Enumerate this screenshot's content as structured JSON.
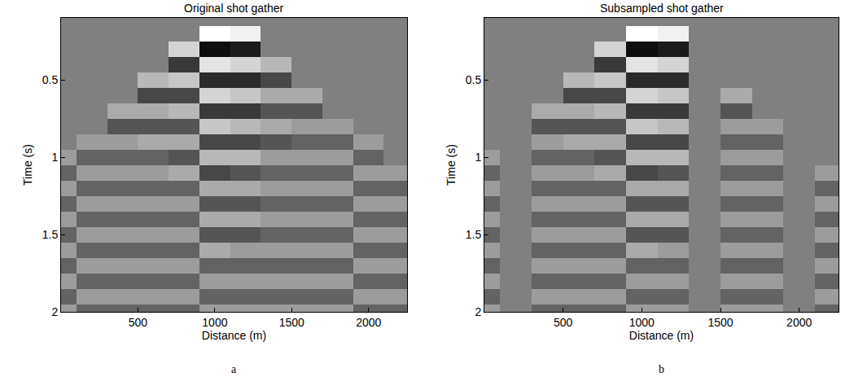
{
  "chart_data": [
    {
      "type": "heatmap",
      "title": "Original shot gather",
      "caption": "a",
      "x_label": "Distance (m)",
      "y_label": "Time (s)",
      "color": "Greys",
      "x": [
        0,
        200,
        400,
        600,
        800,
        1000,
        1200,
        1400,
        1600,
        1800,
        2000,
        2200
      ],
      "y": [
        0.1,
        0.2,
        0.3,
        0.4,
        0.5,
        0.6,
        0.7,
        0.8,
        0.9,
        1.0,
        1.1,
        1.2,
        1.3,
        1.4,
        1.5,
        1.6,
        1.7,
        1.8,
        1.9,
        2.0
      ],
      "z": [
        [
          0,
          0,
          0,
          0,
          0,
          0,
          0,
          0,
          0,
          0,
          0,
          0
        ],
        [
          0,
          0,
          0,
          0,
          0,
          0.9,
          0.8,
          0,
          0,
          0,
          0,
          0
        ],
        [
          0,
          0,
          0,
          0,
          0.6,
          -0.8,
          -0.7,
          0,
          0,
          0,
          0,
          0
        ],
        [
          0,
          0,
          0,
          0,
          -0.5,
          0.7,
          0.6,
          0.4,
          0,
          0,
          0,
          0
        ],
        [
          0,
          0,
          0,
          0.4,
          0.5,
          -0.6,
          -0.6,
          -0.4,
          0,
          0,
          0,
          0
        ],
        [
          0,
          0,
          0,
          -0.4,
          -0.4,
          0.6,
          0.5,
          0.3,
          0.3,
          0,
          0,
          0
        ],
        [
          0,
          0,
          0.3,
          0.3,
          0.4,
          -0.5,
          -0.5,
          -0.3,
          -0.3,
          0,
          0,
          0
        ],
        [
          0,
          0,
          -0.3,
          -0.3,
          -0.3,
          0.5,
          0.4,
          0.3,
          0.2,
          0.2,
          0,
          0
        ],
        [
          0,
          0.2,
          0.2,
          0.3,
          0.3,
          -0.4,
          -0.4,
          -0.3,
          -0.2,
          -0.2,
          0.2,
          0
        ],
        [
          0.2,
          -0.2,
          -0.2,
          -0.2,
          -0.3,
          0.4,
          0.4,
          0.2,
          0.2,
          0.2,
          -0.2,
          0
        ],
        [
          -0.2,
          0.2,
          0.2,
          0.2,
          0.3,
          -0.4,
          -0.3,
          -0.2,
          -0.2,
          -0.2,
          0.2,
          0.2
        ],
        [
          0.2,
          -0.2,
          -0.2,
          -0.2,
          -0.2,
          0.3,
          0.3,
          0.2,
          0.2,
          0.2,
          -0.2,
          -0.2
        ],
        [
          -0.2,
          0.2,
          0.2,
          0.2,
          0.2,
          -0.3,
          -0.3,
          -0.2,
          -0.2,
          -0.2,
          0.2,
          0.2
        ],
        [
          0.2,
          -0.2,
          -0.2,
          -0.2,
          -0.2,
          0.3,
          0.3,
          0.2,
          0.2,
          0.2,
          -0.2,
          -0.2
        ],
        [
          -0.2,
          0.2,
          0.2,
          0.2,
          0.2,
          -0.3,
          -0.3,
          -0.2,
          -0.2,
          -0.2,
          0.2,
          0.2
        ],
        [
          0.2,
          -0.2,
          -0.2,
          -0.2,
          -0.2,
          0.3,
          0.2,
          0.2,
          0.2,
          0.2,
          -0.2,
          -0.2
        ],
        [
          -0.2,
          0.2,
          0.2,
          0.2,
          0.2,
          -0.2,
          -0.2,
          -0.2,
          -0.2,
          -0.2,
          0.2,
          0.2
        ],
        [
          0.2,
          -0.2,
          -0.2,
          -0.2,
          -0.2,
          0.2,
          0.2,
          0.2,
          0.2,
          0.2,
          -0.2,
          -0.2
        ],
        [
          -0.2,
          0.2,
          0.2,
          0.2,
          0.2,
          -0.2,
          -0.2,
          -0.2,
          -0.2,
          -0.2,
          0.2,
          0.2
        ],
        [
          0.2,
          -0.2,
          -0.2,
          -0.2,
          -0.2,
          0.2,
          0.2,
          0.2,
          0.2,
          0.2,
          -0.2,
          -0.2
        ]
      ],
      "xlim": [
        0,
        2250
      ],
      "ylim": [
        2,
        0.1
      ],
      "xticks": [
        500,
        1000,
        1500,
        2000
      ],
      "yticks": [
        0.5,
        1,
        1.5,
        2
      ]
    },
    {
      "type": "heatmap",
      "title": "Subsampled shot gather",
      "caption": "b",
      "x_label": "Distance (m)",
      "y_label": "Time (s)",
      "color": "Greys",
      "x": [
        0,
        200,
        400,
        600,
        800,
        1000,
        1200,
        1400,
        1600,
        1800,
        2000,
        2200
      ],
      "y": [
        0.1,
        0.2,
        0.3,
        0.4,
        0.5,
        0.6,
        0.7,
        0.8,
        0.9,
        1.0,
        1.1,
        1.2,
        1.3,
        1.4,
        1.5,
        1.6,
        1.7,
        1.8,
        1.9,
        2.0
      ],
      "z": [
        [
          0,
          0,
          0,
          0,
          0,
          0,
          0,
          0,
          0,
          0,
          0,
          0
        ],
        [
          0,
          0,
          0,
          0,
          0,
          0.9,
          0.8,
          0,
          0,
          0,
          0,
          0
        ],
        [
          0,
          0,
          0,
          0,
          0.6,
          -0.8,
          -0.7,
          0,
          0,
          0,
          0,
          0
        ],
        [
          0,
          0,
          0,
          0,
          -0.5,
          0.7,
          0.6,
          0,
          0,
          0,
          0,
          0
        ],
        [
          0,
          0,
          0,
          0.4,
          0.5,
          -0.6,
          -0.6,
          0,
          0,
          0,
          0,
          0
        ],
        [
          0,
          0,
          0,
          -0.4,
          -0.4,
          0.6,
          0.5,
          0,
          0.3,
          0,
          0,
          0
        ],
        [
          0,
          0,
          0.3,
          0.3,
          0.4,
          -0.5,
          -0.5,
          0,
          -0.3,
          0,
          0,
          0
        ],
        [
          0,
          0,
          -0.3,
          -0.3,
          -0.3,
          0.5,
          0.4,
          0,
          0.2,
          0.2,
          0,
          0
        ],
        [
          0,
          0,
          0.2,
          0.3,
          0.3,
          -0.4,
          -0.4,
          0,
          -0.2,
          -0.2,
          0,
          0
        ],
        [
          0.2,
          0,
          -0.2,
          -0.2,
          -0.3,
          0.4,
          0.4,
          0,
          0.2,
          0.2,
          0,
          0
        ],
        [
          -0.2,
          0,
          0.2,
          0.2,
          0.3,
          -0.4,
          -0.3,
          0,
          -0.2,
          -0.2,
          0,
          0.2
        ],
        [
          0.2,
          0,
          -0.2,
          -0.2,
          -0.2,
          0.3,
          0.3,
          0,
          0.2,
          0.2,
          0,
          -0.2
        ],
        [
          -0.2,
          0,
          0.2,
          0.2,
          0.2,
          -0.3,
          -0.3,
          0,
          -0.2,
          -0.2,
          0,
          0.2
        ],
        [
          0.2,
          0,
          -0.2,
          -0.2,
          -0.2,
          0.3,
          0.3,
          0,
          0.2,
          0.2,
          0,
          -0.2
        ],
        [
          -0.2,
          0,
          0.2,
          0.2,
          0.2,
          -0.3,
          -0.3,
          0,
          -0.2,
          -0.2,
          0,
          0.2
        ],
        [
          0.2,
          0,
          -0.2,
          -0.2,
          -0.2,
          0.3,
          0.2,
          0,
          0.2,
          0.2,
          0,
          -0.2
        ],
        [
          -0.2,
          0,
          0.2,
          0.2,
          0.2,
          -0.2,
          -0.2,
          0,
          -0.2,
          -0.2,
          0,
          0.2
        ],
        [
          0.2,
          0,
          -0.2,
          -0.2,
          -0.2,
          0.2,
          0.2,
          0,
          0.2,
          0.2,
          0,
          -0.2
        ],
        [
          -0.2,
          0,
          0.2,
          0.2,
          0.2,
          -0.2,
          -0.2,
          0,
          -0.2,
          -0.2,
          0,
          0.2
        ],
        [
          0.2,
          0,
          -0.2,
          -0.2,
          -0.2,
          0.2,
          0.2,
          0,
          0.2,
          0.2,
          0,
          -0.2
        ]
      ],
      "xlim": [
        0,
        2250
      ],
      "ylim": [
        2,
        0.1
      ],
      "xticks": [
        500,
        1000,
        1500,
        2000
      ],
      "yticks": [
        0.5,
        1,
        1.5,
        2
      ]
    }
  ]
}
